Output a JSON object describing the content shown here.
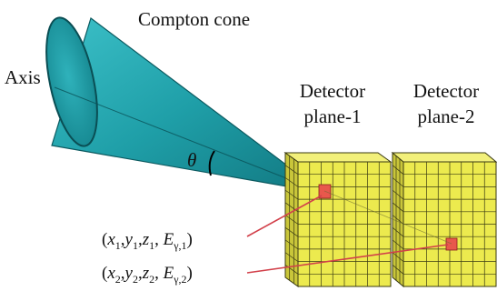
{
  "labels": {
    "cone": "Compton cone",
    "axis": "Axis",
    "detector1_line1": "Detector",
    "detector1_line2": "plane-1",
    "detector2_line1": "Detector",
    "detector2_line2": "plane-2",
    "theta": "θ"
  },
  "interaction1": {
    "open": "(",
    "x": "x",
    "x_sub": "1",
    "y": "y",
    "y_sub": "1",
    "z": "z",
    "z_sub": "1",
    "E": "E",
    "E_sub": "γ,1",
    "close": ")"
  },
  "interaction2": {
    "open": "(",
    "x": "x",
    "x_sub": "2",
    "y": "y",
    "y_sub": "2",
    "z": "z",
    "z_sub": "2",
    "E": "E",
    "E_sub": "γ,2",
    "close": ")"
  },
  "colors": {
    "cone_fill": "#1f9fa8",
    "cone_dark": "#137d86",
    "detector_face": "#ecea4e",
    "detector_side": "#c9c63a",
    "detector_grid": "#3a3a12",
    "hit_cell": "#e8584c",
    "leader_line": "#d2404a"
  },
  "detector": {
    "rows": 10,
    "cols": 8,
    "depth_cells": 3
  }
}
